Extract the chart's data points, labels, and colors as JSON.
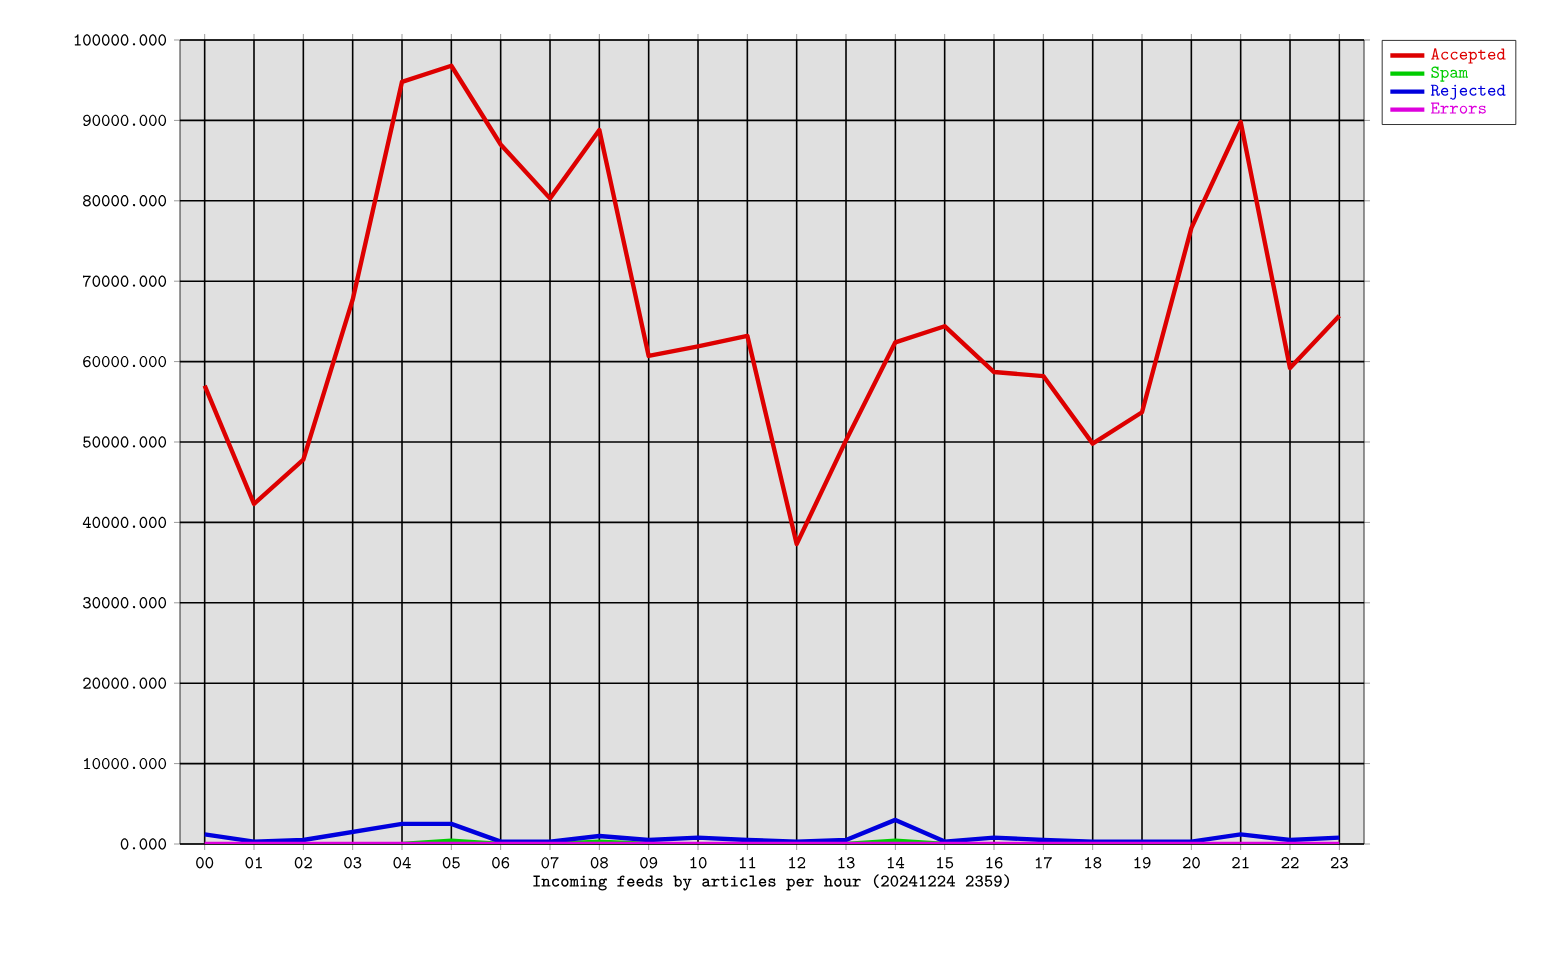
{
  "chart_data": {
    "type": "line",
    "xlabel": "Incoming feeds by articles per hour (20241224 2359)",
    "categories": [
      "00",
      "01",
      "02",
      "03",
      "04",
      "05",
      "06",
      "07",
      "08",
      "09",
      "10",
      "11",
      "12",
      "13",
      "14",
      "15",
      "16",
      "17",
      "18",
      "19",
      "20",
      "21",
      "22",
      "23"
    ],
    "series": [
      {
        "name": "Accepted",
        "color": "#dd0000",
        "values": [
          57000,
          42300,
          47800,
          67700,
          94800,
          96800,
          87000,
          80300,
          88800,
          60700,
          61900,
          63200,
          37300,
          50200,
          62400,
          64400,
          58700,
          58200,
          49800,
          53700,
          76600,
          89800,
          59200,
          65700
        ]
      },
      {
        "name": "Spam",
        "color": "#00cc00",
        "values": [
          null,
          null,
          null,
          null,
          0,
          400,
          0,
          0,
          300,
          0,
          null,
          null,
          null,
          0,
          400,
          0,
          null,
          null,
          null,
          null,
          null,
          null,
          null,
          null
        ]
      },
      {
        "name": "Rejected",
        "color": "#0000dd",
        "values": [
          1200,
          300,
          500,
          1500,
          2500,
          2500,
          300,
          300,
          1000,
          500,
          800,
          500,
          300,
          500,
          3000,
          300,
          800,
          500,
          300,
          300,
          300,
          1200,
          500,
          800
        ]
      },
      {
        "name": "Errors",
        "color": "#dd00dd",
        "values": [
          0,
          0,
          0,
          0,
          0,
          0,
          0,
          0,
          0,
          0,
          0,
          0,
          0,
          0,
          0,
          0,
          0,
          0,
          0,
          0,
          0,
          0,
          0,
          0
        ]
      }
    ],
    "ylim": [
      0,
      100000
    ],
    "yticks": [
      {
        "value": 0,
        "label": "0.000"
      },
      {
        "value": 10000,
        "label": "10000.000"
      },
      {
        "value": 20000,
        "label": "20000.000"
      },
      {
        "value": 30000,
        "label": "30000.000"
      },
      {
        "value": 40000,
        "label": "40000.000"
      },
      {
        "value": 50000,
        "label": "50000.000"
      },
      {
        "value": 60000,
        "label": "60000.000"
      },
      {
        "value": 70000,
        "label": "70000.000"
      },
      {
        "value": 80000,
        "label": "80000.000"
      },
      {
        "value": 90000,
        "label": "90000.000"
      },
      {
        "value": 100000,
        "label": "100000.000"
      }
    ],
    "grid": true,
    "legend": "top right",
    "marker": "none",
    "line_style": "solid"
  }
}
